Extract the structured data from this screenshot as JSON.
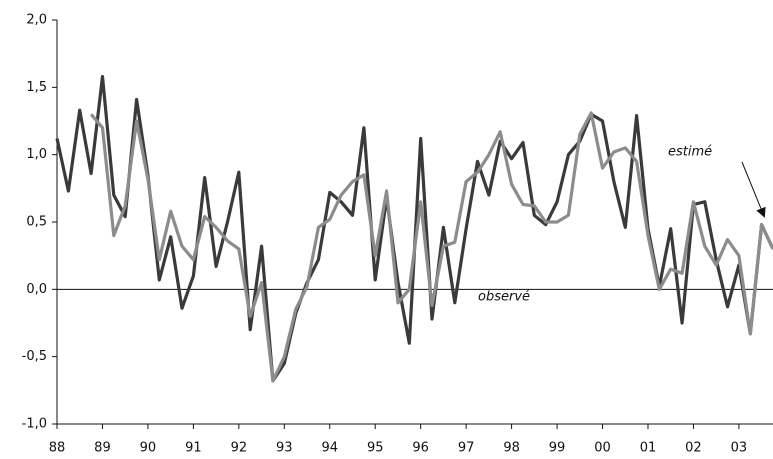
{
  "chart_data": {
    "type": "line",
    "x": [
      1988,
      1988.25,
      1988.5,
      1988.75,
      1989,
      1989.25,
      1989.5,
      1989.75,
      1990,
      1990.25,
      1990.5,
      1990.75,
      1991,
      1991.25,
      1991.5,
      1991.75,
      1992,
      1992.25,
      1992.5,
      1992.75,
      1993,
      1993.25,
      1993.5,
      1993.75,
      1994,
      1994.25,
      1994.5,
      1994.75,
      1995,
      1995.25,
      1995.5,
      1995.75,
      1996,
      1996.25,
      1996.5,
      1996.75,
      1997,
      1997.25,
      1997.5,
      1997.75,
      1998,
      1998.25,
      1998.5,
      1998.75,
      1999,
      1999.25,
      1999.5,
      1999.75,
      2000,
      2000.25,
      2000.5,
      2000.75,
      2001,
      2001.25,
      2001.5,
      2001.75,
      2002,
      2002.25,
      2002.5,
      2002.75,
      2003,
      2003.25,
      2003.5,
      2003.75
    ],
    "series": [
      {
        "name": "observé",
        "color": "#3a3a3a",
        "values": [
          1.12,
          0.73,
          1.33,
          0.86,
          1.58,
          0.7,
          0.54,
          1.41,
          0.85,
          0.07,
          0.39,
          -0.14,
          0.1,
          0.83,
          0.17,
          0.5,
          0.87,
          -0.3,
          0.32,
          -0.68,
          -0.55,
          -0.18,
          0.05,
          0.22,
          0.72,
          0.65,
          0.55,
          1.2,
          0.07,
          0.68,
          0.05,
          -0.4,
          1.12,
          -0.22,
          0.46,
          -0.1,
          0.45,
          0.95,
          0.7,
          1.1,
          0.97,
          1.09,
          0.55,
          0.48,
          0.65,
          1.0,
          1.1,
          1.3,
          1.25,
          0.8,
          0.46,
          1.29,
          0.45,
          0.02,
          0.45,
          -0.25,
          0.63,
          0.65,
          0.22,
          -0.13,
          0.18,
          -0.33,
          0.48,
          0.3
        ]
      },
      {
        "name": "estimé",
        "color": "#8c8c8c",
        "values": [
          null,
          null,
          null,
          1.3,
          1.2,
          0.4,
          0.62,
          1.25,
          0.82,
          0.22,
          0.58,
          0.32,
          0.22,
          0.54,
          0.46,
          0.36,
          0.3,
          -0.2,
          0.05,
          -0.68,
          -0.5,
          -0.15,
          0.02,
          0.46,
          0.52,
          0.7,
          0.8,
          0.85,
          0.25,
          0.73,
          -0.1,
          0.0,
          0.65,
          -0.12,
          0.32,
          0.35,
          0.8,
          0.87,
          1.0,
          1.17,
          0.78,
          0.63,
          0.62,
          0.5,
          0.5,
          0.55,
          1.15,
          1.31,
          0.9,
          1.02,
          1.05,
          0.95,
          0.4,
          0.0,
          0.15,
          0.12,
          0.65,
          0.32,
          0.18,
          0.37,
          0.25,
          -0.33,
          0.48,
          0.3
        ]
      }
    ],
    "xlim": [
      1988,
      2003.75
    ],
    "xticks": [
      {
        "value": 1988,
        "label": "88"
      },
      {
        "value": 1989,
        "label": "89"
      },
      {
        "value": 1990,
        "label": "90"
      },
      {
        "value": 1991,
        "label": "91"
      },
      {
        "value": 1992,
        "label": "92"
      },
      {
        "value": 1993,
        "label": "93"
      },
      {
        "value": 1994,
        "label": "94"
      },
      {
        "value": 1995,
        "label": "95"
      },
      {
        "value": 1996,
        "label": "96"
      },
      {
        "value": 1997,
        "label": "97"
      },
      {
        "value": 1998,
        "label": "98"
      },
      {
        "value": 1999,
        "label": "99"
      },
      {
        "value": 2000,
        "label": "00"
      },
      {
        "value": 2001,
        "label": "01"
      },
      {
        "value": 2002,
        "label": "02"
      },
      {
        "value": 2003,
        "label": "03"
      }
    ],
    "ylim": [
      -1,
      2
    ],
    "yticks": [
      {
        "value": -1,
        "label": "-1,0"
      },
      {
        "value": -0.5,
        "label": "-0,5"
      },
      {
        "value": 0,
        "label": "0,0"
      },
      {
        "value": 0.5,
        "label": "0,5"
      },
      {
        "value": 1,
        "label": "1,0"
      },
      {
        "value": 1.5,
        "label": "1,5"
      },
      {
        "value": 2,
        "label": "2,0"
      }
    ]
  }
}
